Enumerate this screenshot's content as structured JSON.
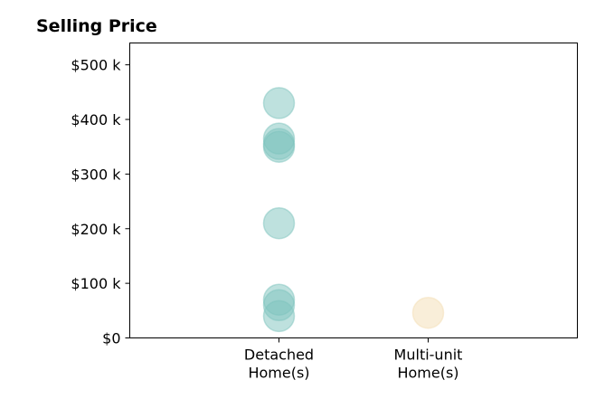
{
  "chart_data": {
    "type": "scatter",
    "title": "Selling Price",
    "xlabel": "",
    "ylabel": "",
    "categories": [
      {
        "lines": [
          "Detached",
          "Home(s)"
        ]
      },
      {
        "lines": [
          "Multi-unit",
          "Home(s)"
        ]
      }
    ],
    "xlim": [
      0,
      3
    ],
    "ylim": [
      0,
      540000
    ],
    "yticks": [
      {
        "value": 0,
        "label": "$0"
      },
      {
        "value": 100000,
        "label": "$100 k"
      },
      {
        "value": 200000,
        "label": "$200 k"
      },
      {
        "value": 300000,
        "label": "$300 k"
      },
      {
        "value": 400000,
        "label": "$400 k"
      },
      {
        "value": 500000,
        "label": "$500 k"
      }
    ],
    "grid": false,
    "series": [
      {
        "category_index": 0,
        "color": "#7ec4bd",
        "values": [
          430000,
          365000,
          355000,
          350000,
          210000,
          70000,
          60000,
          40000
        ]
      },
      {
        "category_index": 1,
        "color": "#f3deb4",
        "values": [
          46000
        ]
      }
    ]
  }
}
